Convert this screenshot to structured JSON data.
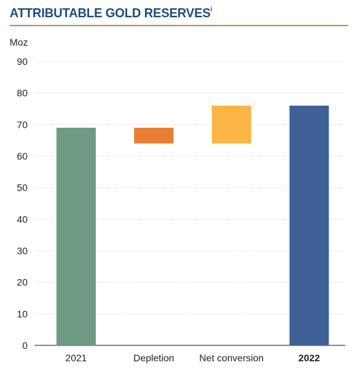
{
  "header": {
    "title": "ATTRIBUTABLE GOLD RESERVES",
    "footnote_marker": "i"
  },
  "colors": {
    "title": "#1f4e79",
    "rule": "#a89a6a",
    "gridline": "#c8c8c8",
    "axis": "#231f20"
  },
  "chart_data": {
    "type": "bar",
    "subtype": "waterfall",
    "ylabel": "Moz",
    "ylim": [
      0,
      90
    ],
    "yticks": [
      0,
      10,
      20,
      30,
      40,
      50,
      60,
      70,
      80,
      90
    ],
    "grid": "horizontal dotted",
    "categories": [
      "2021",
      "Depletion",
      "Net conversion",
      "2022"
    ],
    "bold_categories": [
      "2022"
    ],
    "bars": [
      {
        "category": "2021",
        "start": 0,
        "end": 69,
        "color": "#6f9a82"
      },
      {
        "category": "Depletion",
        "start": 69,
        "end": 64,
        "color": "#e67e33"
      },
      {
        "category": "Net conversion",
        "start": 64,
        "end": 76,
        "color": "#fbb544"
      },
      {
        "category": "2022",
        "start": 0,
        "end": 76,
        "color": "#3d6095"
      }
    ]
  }
}
